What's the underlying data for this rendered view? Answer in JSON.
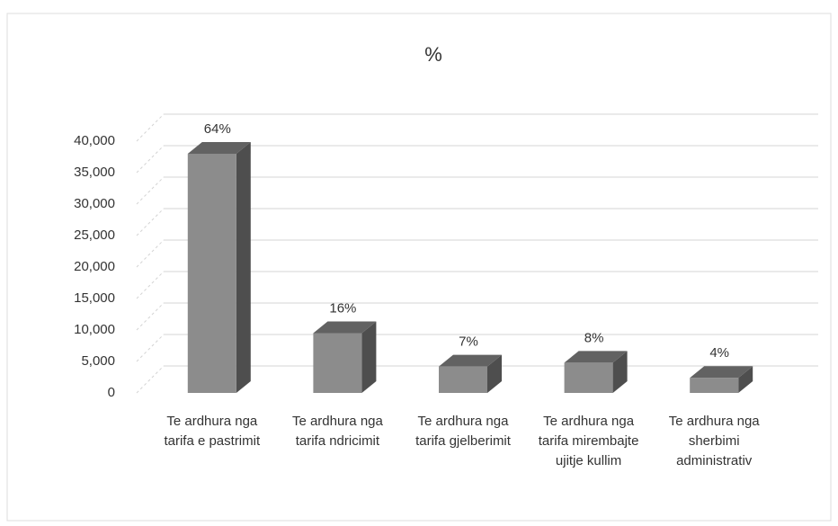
{
  "chart_data": {
    "type": "bar3d",
    "title": "%",
    "categories": [
      "Te ardhura nga tarifa e pastrimit",
      "Te ardhura nga tarifa ndricimit",
      "Te ardhura nga tarifa gjelberimit",
      "Te ardhura nga tarifa mirembajte ujitje kullim",
      "Te ardhura nga sherbimi administrativ"
    ],
    "values": [
      38000,
      9500,
      4200,
      4800,
      2400
    ],
    "data_labels": [
      "64%",
      "16%",
      "7%",
      "8%",
      "4%"
    ],
    "color": "#8c8c8c",
    "ylim": [
      0,
      40000
    ],
    "yticks": [
      0,
      {
        "value": 5000,
        "label": "5,000"
      },
      {
        "value": 10000,
        "label": "10,000"
      },
      {
        "value": 15000,
        "label": "15,000"
      },
      {
        "value": 20000,
        "label": "20,000"
      },
      {
        "value": 25000,
        "label": "25,000"
      },
      {
        "value": 30000,
        "label": "30,000"
      },
      {
        "value": 35000,
        "label": "35,000"
      },
      {
        "value": 40000,
        "label": "40,000"
      }
    ],
    "grid": true
  }
}
